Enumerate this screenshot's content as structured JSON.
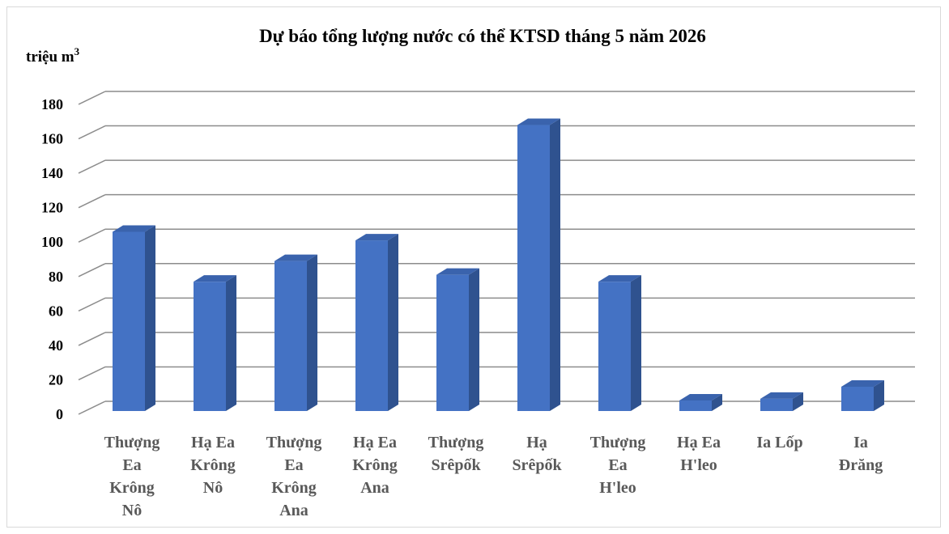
{
  "chart_data": {
    "type": "bar",
    "title": "Dự báo tổng lượng nước có thể  KTSD tháng 5 năm 2026",
    "ylabel": "triệu m³",
    "ylabel_parts": {
      "text": "triệu m",
      "sup": "3"
    },
    "xlabel": "",
    "ylim": [
      0,
      180
    ],
    "yticks": [
      0,
      20,
      40,
      60,
      80,
      100,
      120,
      140,
      160,
      180
    ],
    "grid": true,
    "legend": "none",
    "bar_color": "#4472c4",
    "bar_side_color": "#2f528f",
    "bar_top_color": "#3a63ad",
    "categories": [
      [
        "Thượng",
        "Ea",
        "Krông",
        "Nô"
      ],
      [
        "Hạ Ea",
        "Krông",
        "Nô"
      ],
      [
        "Thượng",
        "Ea",
        "Krông",
        "Ana"
      ],
      [
        "Hạ Ea",
        "Krông",
        "Ana"
      ],
      [
        "Thượng",
        "Srêpốk"
      ],
      [
        "Hạ",
        "Srêpốk"
      ],
      [
        "Thượng",
        "Ea",
        "H'leo"
      ],
      [
        "Hạ Ea",
        "H'leo"
      ],
      [
        "Ia Lốp"
      ],
      [
        "Ia",
        "Đrăng"
      ]
    ],
    "values": [
      106,
      77,
      89,
      101,
      81,
      168,
      77,
      8,
      9,
      16
    ]
  }
}
